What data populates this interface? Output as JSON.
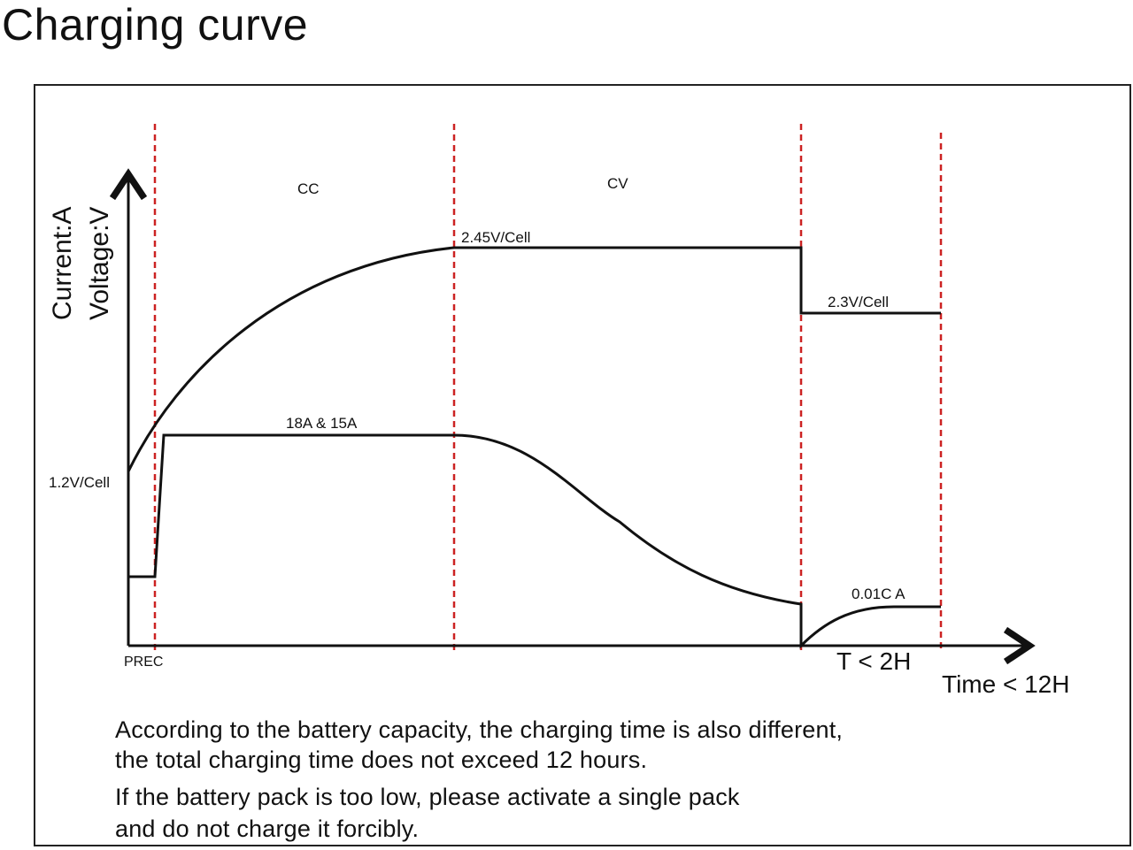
{
  "title": "Charging curve",
  "axes": {
    "y_label_current": "Current:A",
    "y_label_voltage": "Voltage:V",
    "x_label_total": "Time < 12H",
    "x_label_float": "T < 2H"
  },
  "phases": {
    "prec": "PREC",
    "cc": "CC",
    "cv": "CV"
  },
  "annotations": {
    "v_start": "1.2V/Cell",
    "v_peak": "2.45V/Cell",
    "v_float": "2.3V/Cell",
    "i_cc": "18A & 15A",
    "i_end": "0.01C A"
  },
  "notes": [
    "According to the battery capacity, the charging time is also different,",
    "the total charging time does not exceed 12 hours.",
    "If the battery pack is too low, please activate a single pack",
    "and do not charge it forcibly."
  ],
  "colors": {
    "curve": "#111111",
    "phase_divider": "#cc2222",
    "frame": "#222222"
  }
}
